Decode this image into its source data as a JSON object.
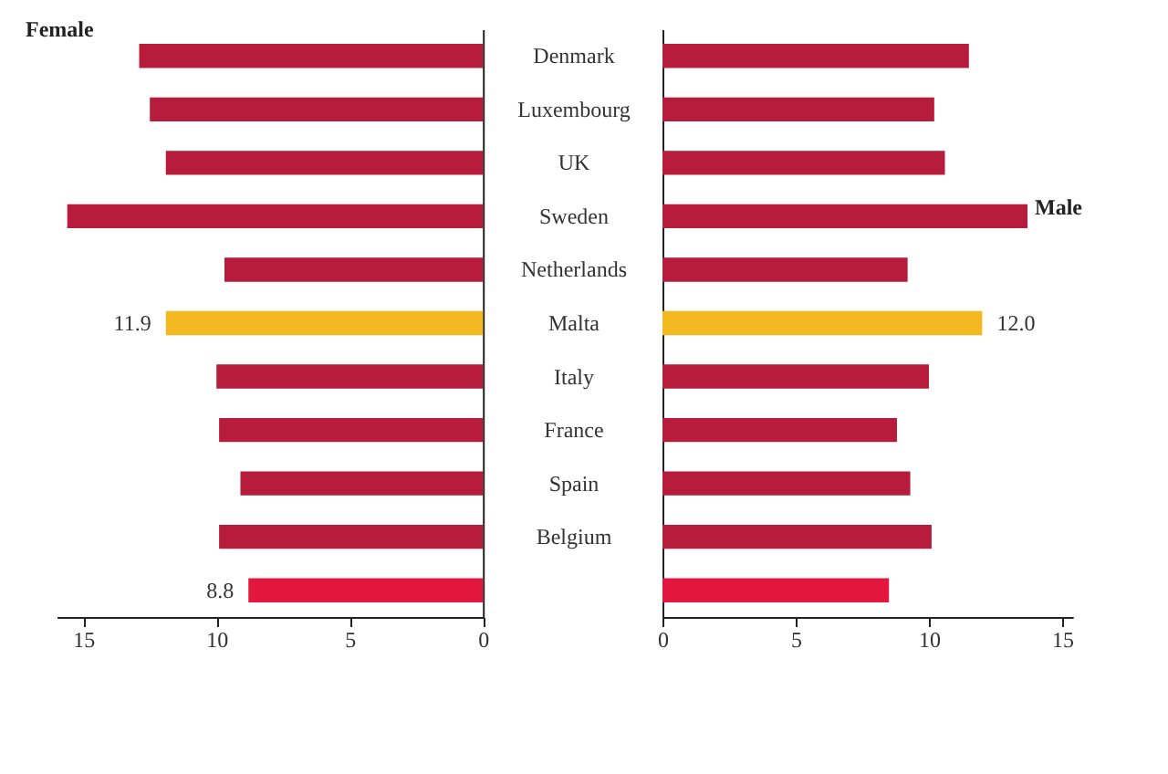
{
  "chart_data": [
    {
      "type": "bar",
      "orientation": "horizontal",
      "categories": [
        "Denmark",
        "Luxembourg",
        "UK",
        "Sweden",
        "Netherlands",
        "Malta",
        "Italy",
        "France",
        "Spain",
        "Belgium",
        null
      ],
      "series": [
        {
          "name": "Female",
          "colors": [
            "#b71c3c",
            "#b71c3c",
            "#b71c3c",
            "#b71c3c",
            "#b71c3c",
            "#f4b921",
            "#b71c3c",
            "#b71c3c",
            "#b71c3c",
            "#b71c3c",
            "#e3173e"
          ],
          "values": [
            12.9,
            12.5,
            11.9,
            15.6,
            9.7,
            11.9,
            10.0,
            9.9,
            9.1,
            9.9,
            8.8
          ],
          "value_labels": [
            null,
            null,
            null,
            null,
            null,
            "11.9",
            null,
            null,
            null,
            null,
            "8.8"
          ]
        }
      ],
      "xlim": [
        16,
        0
      ],
      "xticks": [
        15,
        10,
        5,
        0
      ],
      "tick_labels": "x"
    },
    {
      "type": "bar",
      "orientation": "horizontal",
      "categories": [
        "Denmark",
        "Luxembourg",
        "UK",
        "Sweden",
        "Netherlands",
        "Malta",
        "Italy",
        "France",
        "Spain",
        "Belgium",
        null
      ],
      "series": [
        {
          "name": "Male",
          "colors": [
            "#b71c3c",
            "#b71c3c",
            "#b71c3c",
            "#b71c3c",
            "#b71c3c",
            "#f4b921",
            "#b71c3c",
            "#b71c3c",
            "#b71c3c",
            "#b71c3c",
            "#e3173e"
          ],
          "values": [
            11.5,
            10.2,
            10.6,
            13.7,
            9.2,
            12.0,
            10.0,
            8.8,
            9.3,
            10.1,
            8.5
          ],
          "value_labels": [
            null,
            null,
            null,
            null,
            null,
            "12.0",
            null,
            null,
            null,
            null,
            null
          ]
        }
      ],
      "xlim": [
        0,
        15.4
      ],
      "xticks": [
        0,
        5,
        10,
        15
      ]
    }
  ]
}
